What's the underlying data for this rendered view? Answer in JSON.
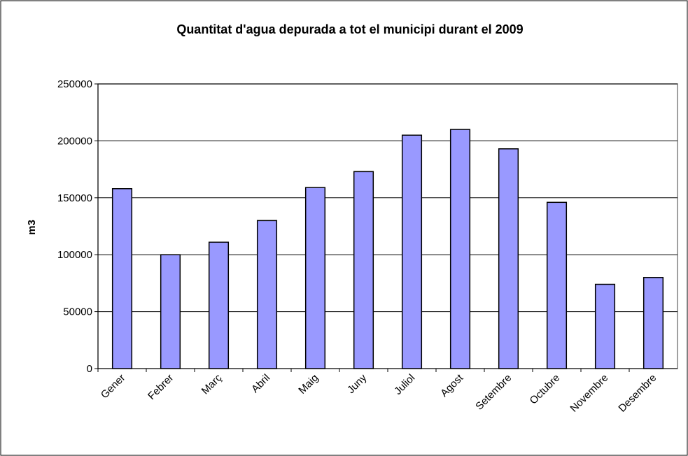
{
  "chart_data": {
    "type": "bar",
    "title": "Quantitat d'agua depurada a tot el municipi durant el 2009",
    "y_label": "m3",
    "categories": [
      "Gener",
      "Febrer",
      "Març",
      "Abril",
      "Maig",
      "Juny",
      "Juliol",
      "Agost",
      "Setembre",
      "Octubre",
      "Novembre",
      "Desembre"
    ],
    "values": [
      158000,
      100000,
      111000,
      130000,
      159000,
      173000,
      205000,
      210000,
      193000,
      146000,
      74000,
      80000
    ],
    "color": "#9999ff",
    "ylim": [
      0,
      250000
    ],
    "yticks": [
      0,
      50000,
      100000,
      150000,
      200000,
      250000
    ],
    "grid": true
  }
}
